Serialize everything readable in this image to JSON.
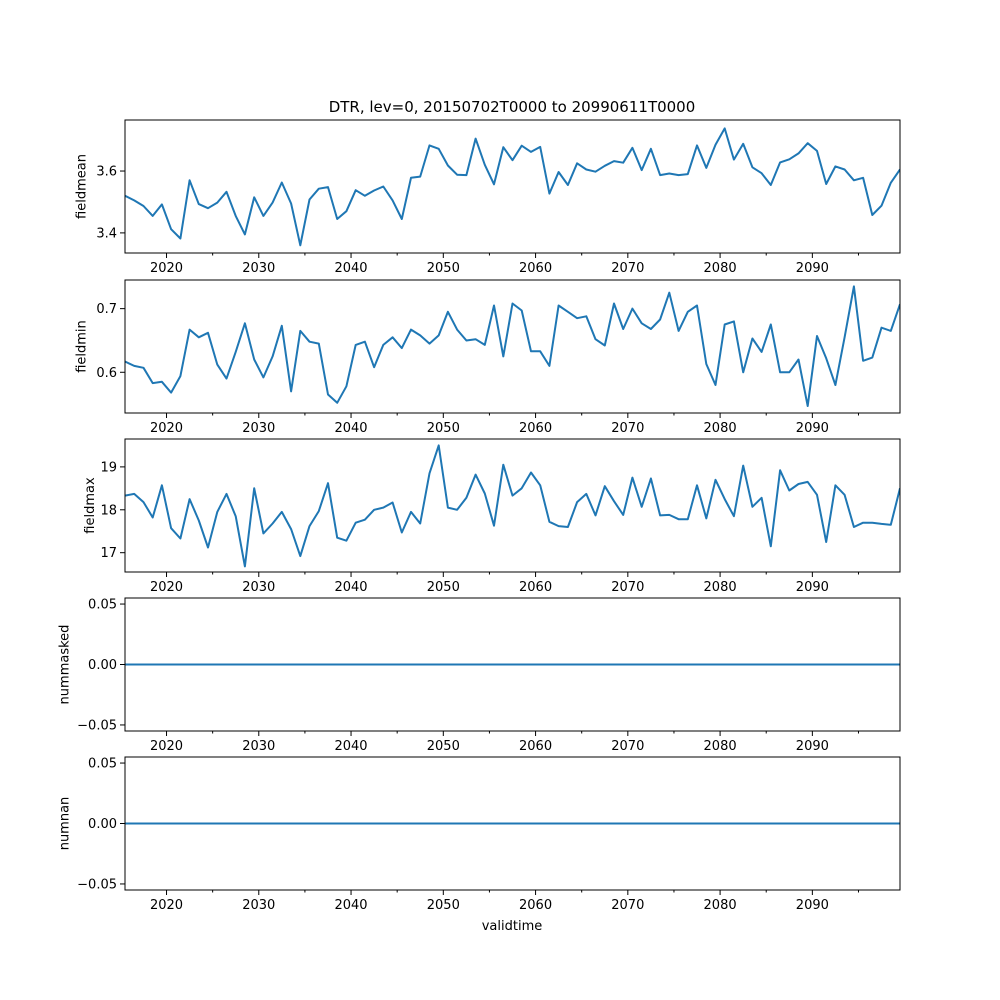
{
  "figure_title": "DTR, lev=0, 20150702T0000 to 20990611T0000",
  "x_label": "validtime",
  "line_color": "#1f77b4",
  "chart_data": [
    {
      "type": "line",
      "ylabel": "fieldmean",
      "xlim": [
        2015.5,
        2099.5
      ],
      "ylim": [
        3.335,
        3.765
      ],
      "yticks": [
        3.4,
        3.6
      ],
      "ytick_labels": [
        "3.4",
        "3.6"
      ],
      "xticks": [
        2020,
        2030,
        2040,
        2050,
        2060,
        2070,
        2080,
        2090
      ],
      "xtick_labels": [
        "2020",
        "2030",
        "2040",
        "2050",
        "2060",
        "2070",
        "2080",
        "2090"
      ],
      "x_start": 2015.5,
      "x_step": 1,
      "values": [
        3.52,
        3.505,
        3.487,
        3.455,
        3.492,
        3.412,
        3.382,
        3.57,
        3.493,
        3.48,
        3.498,
        3.533,
        3.455,
        3.395,
        3.515,
        3.455,
        3.498,
        3.563,
        3.495,
        3.36,
        3.508,
        3.543,
        3.548,
        3.445,
        3.47,
        3.538,
        3.52,
        3.537,
        3.55,
        3.505,
        3.445,
        3.578,
        3.582,
        3.683,
        3.672,
        3.618,
        3.588,
        3.587,
        3.705,
        3.62,
        3.557,
        3.677,
        3.635,
        3.682,
        3.662,
        3.678,
        3.527,
        3.597,
        3.555,
        3.625,
        3.605,
        3.598,
        3.617,
        3.632,
        3.627,
        3.675,
        3.603,
        3.672,
        3.587,
        3.592,
        3.587,
        3.59,
        3.683,
        3.61,
        3.685,
        3.738,
        3.637,
        3.688,
        3.612,
        3.593,
        3.555,
        3.628,
        3.638,
        3.657,
        3.69,
        3.665,
        3.558,
        3.615,
        3.605,
        3.57,
        3.578,
        3.458,
        3.488,
        3.562,
        3.605
      ]
    },
    {
      "type": "line",
      "ylabel": "fieldmin",
      "xlim": [
        2015.5,
        2099.5
      ],
      "ylim": [
        0.536,
        0.745
      ],
      "yticks": [
        0.6,
        0.7
      ],
      "ytick_labels": [
        "0.6",
        "0.7"
      ],
      "xticks": [
        2020,
        2030,
        2040,
        2050,
        2060,
        2070,
        2080,
        2090
      ],
      "xtick_labels": [
        "2020",
        "2030",
        "2040",
        "2050",
        "2060",
        "2070",
        "2080",
        "2090"
      ],
      "x_start": 2015.5,
      "x_step": 1,
      "values": [
        0.617,
        0.61,
        0.607,
        0.583,
        0.585,
        0.568,
        0.594,
        0.667,
        0.655,
        0.662,
        0.612,
        0.59,
        0.632,
        0.677,
        0.62,
        0.592,
        0.625,
        0.673,
        0.57,
        0.665,
        0.648,
        0.645,
        0.565,
        0.552,
        0.578,
        0.643,
        0.648,
        0.608,
        0.643,
        0.655,
        0.638,
        0.667,
        0.658,
        0.645,
        0.658,
        0.695,
        0.667,
        0.65,
        0.652,
        0.643,
        0.705,
        0.625,
        0.708,
        0.697,
        0.633,
        0.633,
        0.61,
        0.705,
        0.695,
        0.685,
        0.688,
        0.652,
        0.642,
        0.708,
        0.668,
        0.7,
        0.677,
        0.668,
        0.683,
        0.725,
        0.665,
        0.695,
        0.705,
        0.613,
        0.58,
        0.675,
        0.68,
        0.6,
        0.653,
        0.632,
        0.675,
        0.6,
        0.6,
        0.62,
        0.547,
        0.657,
        0.622,
        0.58,
        0.655,
        0.735,
        0.618,
        0.623,
        0.67,
        0.665,
        0.707
      ]
    },
    {
      "type": "line",
      "ylabel": "fieldmax",
      "xlim": [
        2015.5,
        2099.5
      ],
      "ylim": [
        16.55,
        19.65
      ],
      "yticks": [
        17,
        18,
        19
      ],
      "ytick_labels": [
        "17",
        "18",
        "19"
      ],
      "xticks": [
        2020,
        2030,
        2040,
        2050,
        2060,
        2070,
        2080,
        2090
      ],
      "xtick_labels": [
        "2020",
        "2030",
        "2040",
        "2050",
        "2060",
        "2070",
        "2080",
        "2090"
      ],
      "x_start": 2015.5,
      "x_step": 1,
      "values": [
        18.33,
        18.37,
        18.18,
        17.82,
        18.57,
        17.57,
        17.33,
        18.25,
        17.75,
        17.12,
        17.95,
        18.37,
        17.85,
        16.68,
        18.5,
        17.45,
        17.68,
        17.95,
        17.55,
        16.92,
        17.62,
        17.97,
        18.62,
        17.35,
        17.28,
        17.7,
        17.77,
        18.0,
        18.05,
        18.17,
        17.47,
        17.95,
        17.68,
        18.85,
        19.5,
        18.05,
        18.0,
        18.28,
        18.82,
        18.38,
        17.63,
        19.05,
        18.33,
        18.5,
        18.87,
        18.57,
        17.72,
        17.62,
        17.6,
        18.18,
        18.37,
        17.87,
        18.55,
        18.2,
        17.88,
        18.75,
        18.07,
        18.73,
        17.87,
        17.88,
        17.78,
        17.78,
        18.57,
        17.8,
        18.7,
        18.25,
        17.85,
        19.03,
        18.07,
        18.28,
        17.15,
        18.92,
        18.45,
        18.6,
        18.65,
        18.35,
        17.25,
        18.57,
        18.35,
        17.6,
        17.7,
        17.7,
        17.67,
        17.65,
        18.5
      ]
    },
    {
      "type": "line",
      "ylabel": "nummasked",
      "xlim": [
        2015.5,
        2099.5
      ],
      "ylim": [
        -0.055,
        0.055
      ],
      "yticks": [
        -0.05,
        0.0,
        0.05
      ],
      "ytick_labels": [
        "−0.05",
        "0.00",
        "0.05"
      ],
      "xticks": [
        2020,
        2030,
        2040,
        2050,
        2060,
        2070,
        2080,
        2090
      ],
      "xtick_labels": [
        "2020",
        "2030",
        "2040",
        "2050",
        "2060",
        "2070",
        "2080",
        "2090"
      ],
      "x": [
        2015.5,
        2099.5
      ],
      "values": [
        0,
        0
      ]
    },
    {
      "type": "line",
      "ylabel": "numnan",
      "xlim": [
        2015.5,
        2099.5
      ],
      "ylim": [
        -0.055,
        0.055
      ],
      "yticks": [
        -0.05,
        0.0,
        0.05
      ],
      "ytick_labels": [
        "−0.05",
        "0.00",
        "0.05"
      ],
      "xticks": [
        2020,
        2030,
        2040,
        2050,
        2060,
        2070,
        2080,
        2090
      ],
      "xtick_labels": [
        "2020",
        "2030",
        "2040",
        "2050",
        "2060",
        "2070",
        "2080",
        "2090"
      ],
      "x": [
        2015.5,
        2099.5
      ],
      "values": [
        0,
        0
      ]
    }
  ]
}
